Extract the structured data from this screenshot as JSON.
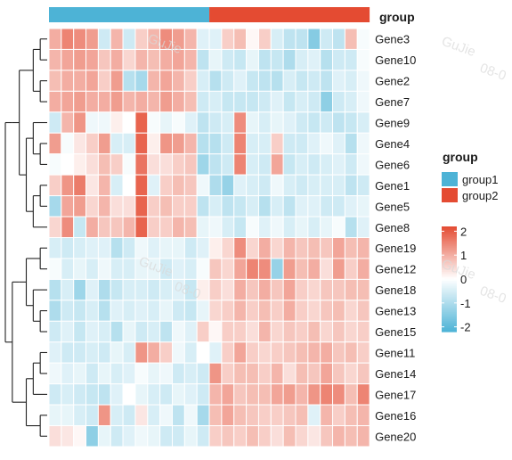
{
  "watermark": {
    "text_1": "GuJie",
    "text_2": "08-0"
  },
  "chart_data": {
    "type": "heatmap",
    "title": "",
    "columns_per_group": [
      13,
      13
    ],
    "rows": [
      "Gene3",
      "Gene10",
      "Gene2",
      "Gene7",
      "Gene9",
      "Gene4",
      "Gene6",
      "Gene1",
      "Gene5",
      "Gene8",
      "Gene19",
      "Gene12",
      "Gene18",
      "Gene13",
      "Gene15",
      "Gene11",
      "Gene14",
      "Gene17",
      "Gene16",
      "Gene20"
    ],
    "values": [
      [
        1.0,
        1.5,
        1.4,
        1.2,
        -0.6,
        0.9,
        -0.6,
        0.6,
        0.9,
        1.4,
        1.2,
        0.9,
        -0.4,
        -0.4,
        0.6,
        0.8,
        0.1,
        0.6,
        -0.5,
        -0.8,
        -0.8,
        -1.5,
        -0.6,
        -0.8,
        0.8,
        -0.1
      ],
      [
        0.9,
        1.1,
        1.2,
        1.1,
        0.7,
        1.0,
        0.5,
        0.9,
        0.8,
        1.0,
        1.1,
        0.9,
        -0.8,
        -0.3,
        -0.6,
        -0.7,
        -0.3,
        -0.8,
        -0.7,
        -1.0,
        -0.5,
        -0.4,
        -0.9,
        -0.6,
        -0.6,
        -0.1
      ],
      [
        0.8,
        1.0,
        1.0,
        1.1,
        0.6,
        1.2,
        -0.9,
        -1.1,
        0.9,
        1.1,
        0.9,
        0.6,
        -0.5,
        -0.9,
        -0.6,
        -0.4,
        -0.7,
        -0.8,
        -0.9,
        -0.5,
        -0.7,
        -0.6,
        -0.8,
        -0.4,
        -0.5,
        -0.2
      ],
      [
        1.0,
        1.1,
        1.2,
        1.0,
        1.0,
        1.2,
        0.9,
        1.0,
        0.9,
        1.2,
        1.0,
        0.8,
        -0.6,
        -0.5,
        -0.7,
        -0.7,
        -0.7,
        -0.6,
        -0.4,
        -0.7,
        -0.5,
        -0.6,
        -1.4,
        -0.6,
        -0.5,
        -0.2
      ],
      [
        -0.6,
        0.9,
        1.3,
        -0.2,
        -0.2,
        0.2,
        0.0,
        1.9,
        -0.1,
        -0.3,
        -0.1,
        -0.4,
        -0.8,
        -0.6,
        -0.5,
        1.4,
        -0.3,
        -0.5,
        -0.3,
        -0.4,
        -0.6,
        -0.7,
        -0.6,
        -0.8,
        -0.7,
        -0.5
      ],
      [
        1.2,
        -0.1,
        0.3,
        0.6,
        1.2,
        -0.5,
        -0.5,
        1.9,
        0.2,
        1.3,
        1.2,
        0.9,
        -0.9,
        -0.9,
        -0.6,
        1.5,
        -0.5,
        -0.5,
        0.6,
        -0.6,
        -0.6,
        -0.4,
        -0.2,
        -0.4,
        -0.9,
        -0.2
      ],
      [
        -0.1,
        0.0,
        0.2,
        0.4,
        0.8,
        0.6,
        -0.1,
        1.7,
        0.4,
        0.4,
        0.6,
        0.7,
        -1.2,
        -0.8,
        -0.6,
        1.5,
        -0.5,
        -0.6,
        1.1,
        -0.7,
        -0.5,
        -0.6,
        -0.5,
        -0.4,
        -0.6,
        -0.2
      ],
      [
        0.6,
        1.3,
        1.6,
        0.3,
        0.9,
        -0.5,
        0.0,
        1.9,
        -0.4,
        0.6,
        0.8,
        0.7,
        -0.2,
        -1.0,
        -1.3,
        -0.4,
        -0.5,
        -0.6,
        -0.2,
        -0.5,
        -0.6,
        -0.5,
        -0.5,
        -0.5,
        -0.8,
        -0.6
      ],
      [
        -1.1,
        1.1,
        1.2,
        0.5,
        0.9,
        0.4,
        0.4,
        1.9,
        0.6,
        0.8,
        0.6,
        0.6,
        -0.8,
        -0.5,
        -0.8,
        -0.7,
        -0.5,
        -0.9,
        -0.5,
        -0.8,
        -0.4,
        -0.4,
        -0.6,
        -0.6,
        -0.4,
        -0.3
      ],
      [
        0.5,
        1.4,
        -0.7,
        1.0,
        0.7,
        0.7,
        0.9,
        1.9,
        0.6,
        0.6,
        0.9,
        0.8,
        -0.3,
        -0.2,
        -0.5,
        -0.7,
        -0.1,
        -0.4,
        -0.2,
        -0.5,
        -0.3,
        -0.5,
        -0.3,
        -0.1,
        -0.9,
        -0.4
      ],
      [
        -0.5,
        -0.6,
        -0.5,
        -0.4,
        -0.4,
        -0.9,
        -0.6,
        -0.2,
        -0.4,
        -0.3,
        -0.3,
        -0.6,
        -0.4,
        0.2,
        0.5,
        1.4,
        0.5,
        1.0,
        0.5,
        0.9,
        0.7,
        0.8,
        0.7,
        1.1,
        0.8,
        0.9
      ],
      [
        -0.1,
        -0.5,
        -0.3,
        -0.5,
        -0.2,
        -0.5,
        -0.5,
        -0.3,
        -0.3,
        -0.6,
        -0.4,
        -0.5,
        -0.1,
        0.7,
        0.5,
        1.1,
        1.5,
        1.4,
        -1.3,
        1.2,
        0.8,
        1.0,
        0.4,
        1.2,
        0.6,
        1.0
      ],
      [
        -0.9,
        -0.5,
        -1.2,
        -0.4,
        -1.0,
        -0.7,
        -0.5,
        -0.5,
        -0.6,
        -0.5,
        -0.4,
        -0.7,
        0.2,
        0.6,
        0.4,
        1.0,
        0.7,
        1.0,
        0.7,
        1.1,
        0.6,
        0.5,
        0.7,
        0.7,
        0.8,
        0.8
      ],
      [
        -1.0,
        -0.6,
        -0.7,
        -0.5,
        -0.9,
        -0.4,
        -0.5,
        -0.4,
        -0.5,
        -0.3,
        -0.6,
        -0.7,
        -0.3,
        0.5,
        0.6,
        0.9,
        0.6,
        0.8,
        0.6,
        1.0,
        0.6,
        0.5,
        0.7,
        0.8,
        0.5,
        0.7
      ],
      [
        -0.6,
        -0.4,
        -0.7,
        -0.4,
        -0.5,
        -0.9,
        -0.3,
        -0.6,
        -0.5,
        -0.8,
        -0.2,
        -0.4,
        0.6,
        0.1,
        0.6,
        0.6,
        0.4,
        0.9,
        0.5,
        0.7,
        0.6,
        0.8,
        0.5,
        0.7,
        0.5,
        0.6
      ],
      [
        -0.4,
        -0.6,
        -0.6,
        -0.5,
        -0.6,
        -0.3,
        -0.5,
        1.3,
        1.0,
        0.6,
        -0.2,
        -0.5,
        0.0,
        -0.4,
        0.6,
        1.1,
        0.6,
        0.5,
        0.6,
        0.7,
        0.8,
        0.9,
        1.0,
        0.7,
        0.8,
        0.6
      ],
      [
        -0.2,
        -0.4,
        -0.3,
        -0.6,
        -0.3,
        -0.5,
        -0.4,
        -0.1,
        -0.3,
        -0.2,
        -0.6,
        -0.5,
        -0.6,
        1.3,
        0.6,
        0.8,
        0.8,
        0.6,
        0.9,
        0.4,
        0.8,
        0.7,
        1.1,
        0.7,
        0.5,
        0.7
      ],
      [
        -0.6,
        -0.5,
        -0.6,
        -0.7,
        -0.8,
        -0.4,
        0.0,
        -0.3,
        -0.5,
        -0.6,
        -0.3,
        -0.4,
        -0.6,
        0.9,
        1.1,
        0.7,
        0.8,
        0.8,
        1.1,
        1.2,
        0.9,
        1.3,
        1.5,
        1.4,
        0.8,
        1.5
      ],
      [
        -0.3,
        -0.3,
        -0.5,
        -0.6,
        1.3,
        -0.5,
        -0.6,
        0.3,
        -0.5,
        -0.2,
        -0.8,
        -0.2,
        -1.1,
        0.8,
        1.1,
        0.8,
        0.7,
        0.6,
        0.6,
        0.7,
        0.8,
        -0.4,
        0.9,
        0.6,
        0.8,
        0.9
      ],
      [
        0.4,
        0.3,
        0.1,
        -1.4,
        -0.3,
        -0.6,
        -0.4,
        -0.2,
        -0.3,
        -0.6,
        -0.6,
        -0.3,
        -0.6,
        0.6,
        0.7,
        0.6,
        0.8,
        0.6,
        0.4,
        0.8,
        0.5,
        0.3,
        0.7,
        0.9,
        0.8,
        0.9
      ]
    ],
    "column_annotation": {
      "title": "group"
    },
    "legend": {
      "group_title": "group",
      "groups": [
        {
          "name": "group1",
          "color": "#4db3d6"
        },
        {
          "name": "group2",
          "color": "#e44b32"
        }
      ],
      "scale_ticks": [
        "2",
        "1",
        "0",
        "-1",
        "-2"
      ],
      "scale_range": [
        -2.2,
        2.2
      ]
    },
    "colors": {
      "low": "#4db3d6",
      "mid": "#ffffff",
      "high": "#e44b32"
    },
    "dendrogram": "row clustering tree on the left"
  }
}
